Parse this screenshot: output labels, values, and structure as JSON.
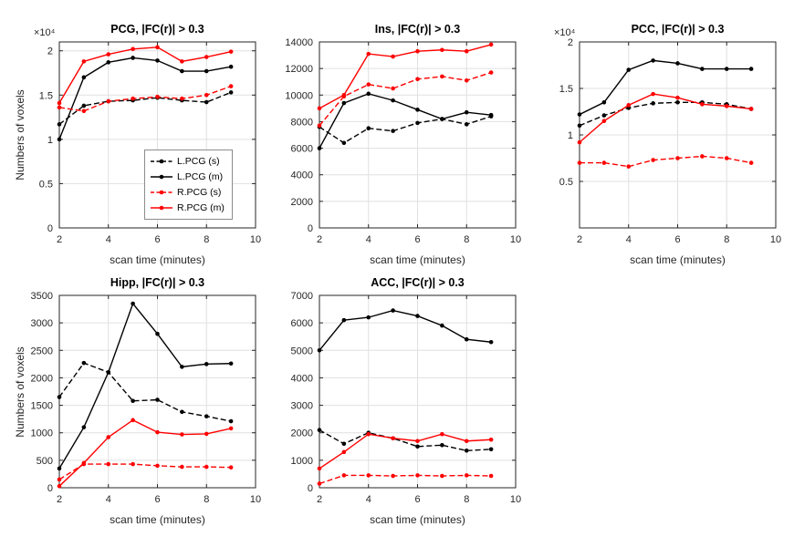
{
  "colors": {
    "black": "#000000",
    "red": "#ff0000",
    "grid": "#e0e0e0",
    "axis": "#262626",
    "legend_border": "#8c8c8c"
  },
  "chart_data": [
    {
      "type": "line",
      "title": "PCG, |FC(r)| > 0.3",
      "xlabel": "scan time (minutes)",
      "ylabel": "Numbers of voxels",
      "exponent": "×10⁴",
      "x": [
        2,
        3,
        4,
        5,
        6,
        7,
        8,
        9
      ],
      "xlim": [
        2,
        10
      ],
      "xticks": [
        2,
        4,
        6,
        8,
        10
      ],
      "xtick_labels": [
        "2",
        "4",
        "6",
        "8",
        "10"
      ],
      "ylim": [
        0,
        21000
      ],
      "yticks": [
        0,
        5000,
        10000,
        15000,
        20000
      ],
      "ytick_labels": [
        "0",
        "0.5",
        "1",
        "1.5",
        "2"
      ],
      "grid": true,
      "series": [
        {
          "name": "L.PCG (s)",
          "color": "#000000",
          "dash": true,
          "values": [
            11700,
            13800,
            14300,
            14400,
            14700,
            14400,
            14200,
            15300
          ]
        },
        {
          "name": "L.PCG (m)",
          "color": "#000000",
          "dash": false,
          "values": [
            10000,
            17000,
            18700,
            19200,
            18900,
            17700,
            17700,
            18200
          ]
        },
        {
          "name": "R.PCG (s)",
          "color": "#ff0000",
          "dash": true,
          "values": [
            13600,
            13200,
            14300,
            14600,
            14800,
            14600,
            15000,
            16000
          ]
        },
        {
          "name": "R.PCG (m)",
          "color": "#ff0000",
          "dash": false,
          "values": [
            14100,
            18800,
            19600,
            20200,
            20400,
            18800,
            19300,
            19900
          ]
        }
      ],
      "legend": {
        "position": "inside-bottom-right",
        "entries": [
          "L.PCG (s)",
          "L.PCG (m)",
          "R.PCG (s)",
          "R.PCG (m)"
        ]
      }
    },
    {
      "type": "line",
      "title": "Ins, |FC(r)| > 0.3",
      "xlabel": "scan time (minutes)",
      "x": [
        2,
        3,
        4,
        5,
        6,
        7,
        8,
        9
      ],
      "xlim": [
        2,
        10
      ],
      "xticks": [
        2,
        4,
        6,
        8,
        10
      ],
      "xtick_labels": [
        "2",
        "4",
        "6",
        "8",
        "10"
      ],
      "ylim": [
        0,
        14000
      ],
      "yticks": [
        0,
        2000,
        4000,
        6000,
        8000,
        10000,
        12000,
        14000
      ],
      "ytick_labels": [
        "0",
        "2000",
        "4000",
        "6000",
        "8000",
        "10000",
        "12000",
        "14000"
      ],
      "grid": true,
      "series": [
        {
          "name": "black dashed",
          "color": "#000000",
          "dash": true,
          "values": [
            7600,
            6400,
            7500,
            7300,
            7900,
            8200,
            7800,
            8400
          ]
        },
        {
          "name": "black solid",
          "color": "#000000",
          "dash": false,
          "values": [
            6000,
            9400,
            10100,
            9600,
            8900,
            8200,
            8700,
            8500
          ]
        },
        {
          "name": "red dashed",
          "color": "#ff0000",
          "dash": true,
          "values": [
            7700,
            9900,
            10800,
            10500,
            11200,
            11400,
            11100,
            11700
          ]
        },
        {
          "name": "red solid",
          "color": "#ff0000",
          "dash": false,
          "values": [
            9000,
            10000,
            13100,
            12900,
            13300,
            13400,
            13300,
            13800
          ]
        }
      ]
    },
    {
      "type": "line",
      "title": "PCC, |FC(r)| > 0.3",
      "xlabel": "scan time (minutes)",
      "exponent": "×10⁴",
      "x": [
        2,
        3,
        4,
        5,
        6,
        7,
        8,
        9
      ],
      "xlim": [
        2,
        10
      ],
      "xticks": [
        2,
        4,
        6,
        8,
        10
      ],
      "xtick_labels": [
        "2",
        "4",
        "6",
        "8",
        "10"
      ],
      "ylim": [
        0,
        20000
      ],
      "yticks": [
        5000,
        10000,
        15000,
        20000
      ],
      "ytick_labels": [
        "0.5",
        "1",
        "1.5",
        "2"
      ],
      "grid": true,
      "series": [
        {
          "name": "black dashed",
          "color": "#000000",
          "dash": true,
          "values": [
            11000,
            12100,
            12900,
            13400,
            13500,
            13500,
            13300,
            12800
          ]
        },
        {
          "name": "black solid",
          "color": "#000000",
          "dash": false,
          "values": [
            12200,
            13500,
            17000,
            18000,
            17700,
            17100,
            17100,
            17100
          ]
        },
        {
          "name": "red dashed",
          "color": "#ff0000",
          "dash": true,
          "values": [
            7000,
            7000,
            6600,
            7300,
            7500,
            7700,
            7500,
            7000
          ]
        },
        {
          "name": "red solid",
          "color": "#ff0000",
          "dash": false,
          "values": [
            9200,
            11500,
            13200,
            14400,
            14000,
            13300,
            13100,
            12800
          ]
        }
      ]
    },
    {
      "type": "line",
      "title": "Hipp, |FC(r)| > 0.3",
      "xlabel": "scan time (minutes)",
      "ylabel": "Numbers of voxels",
      "x": [
        2,
        3,
        4,
        5,
        6,
        7,
        8,
        9
      ],
      "xlim": [
        2,
        10
      ],
      "xticks": [
        2,
        4,
        6,
        8,
        10
      ],
      "xtick_labels": [
        "2",
        "4",
        "6",
        "8",
        "10"
      ],
      "ylim": [
        0,
        3500
      ],
      "yticks": [
        0,
        500,
        1000,
        1500,
        2000,
        2500,
        3000,
        3500
      ],
      "ytick_labels": [
        "0",
        "500",
        "1000",
        "1500",
        "2000",
        "2500",
        "3000",
        "3500"
      ],
      "grid": true,
      "series": [
        {
          "name": "black dashed",
          "color": "#000000",
          "dash": true,
          "values": [
            1650,
            2270,
            2100,
            1580,
            1600,
            1380,
            1300,
            1210
          ]
        },
        {
          "name": "black solid",
          "color": "#000000",
          "dash": false,
          "values": [
            350,
            1100,
            2100,
            3350,
            2800,
            2200,
            2250,
            2260
          ]
        },
        {
          "name": "red dashed",
          "color": "#ff0000",
          "dash": true,
          "values": [
            150,
            430,
            430,
            430,
            400,
            380,
            380,
            370
          ]
        },
        {
          "name": "red solid",
          "color": "#ff0000",
          "dash": false,
          "values": [
            30,
            450,
            920,
            1230,
            1010,
            970,
            980,
            1080
          ]
        }
      ]
    },
    {
      "type": "line",
      "title": "ACC, |FC(r)| > 0.3",
      "xlabel": "scan time (minutes)",
      "x": [
        2,
        3,
        4,
        5,
        6,
        7,
        8,
        9
      ],
      "xlim": [
        2,
        10
      ],
      "xticks": [
        2,
        4,
        6,
        8,
        10
      ],
      "xtick_labels": [
        "2",
        "4",
        "6",
        "8",
        "10"
      ],
      "ylim": [
        0,
        7000
      ],
      "yticks": [
        0,
        1000,
        2000,
        3000,
        4000,
        5000,
        6000,
        7000
      ],
      "ytick_labels": [
        "0",
        "1000",
        "2000",
        "3000",
        "4000",
        "5000",
        "6000",
        "7000"
      ],
      "grid": true,
      "series": [
        {
          "name": "black dashed",
          "color": "#000000",
          "dash": true,
          "values": [
            2100,
            1600,
            2000,
            1800,
            1500,
            1550,
            1350,
            1400
          ]
        },
        {
          "name": "black solid",
          "color": "#000000",
          "dash": false,
          "values": [
            5000,
            6100,
            6200,
            6450,
            6250,
            5900,
            5400,
            5300
          ]
        },
        {
          "name": "red dashed",
          "color": "#ff0000",
          "dash": true,
          "values": [
            150,
            450,
            450,
            430,
            450,
            430,
            450,
            430
          ]
        },
        {
          "name": "red solid",
          "color": "#ff0000",
          "dash": false,
          "values": [
            700,
            1300,
            1950,
            1800,
            1700,
            1950,
            1700,
            1750
          ]
        }
      ]
    }
  ]
}
